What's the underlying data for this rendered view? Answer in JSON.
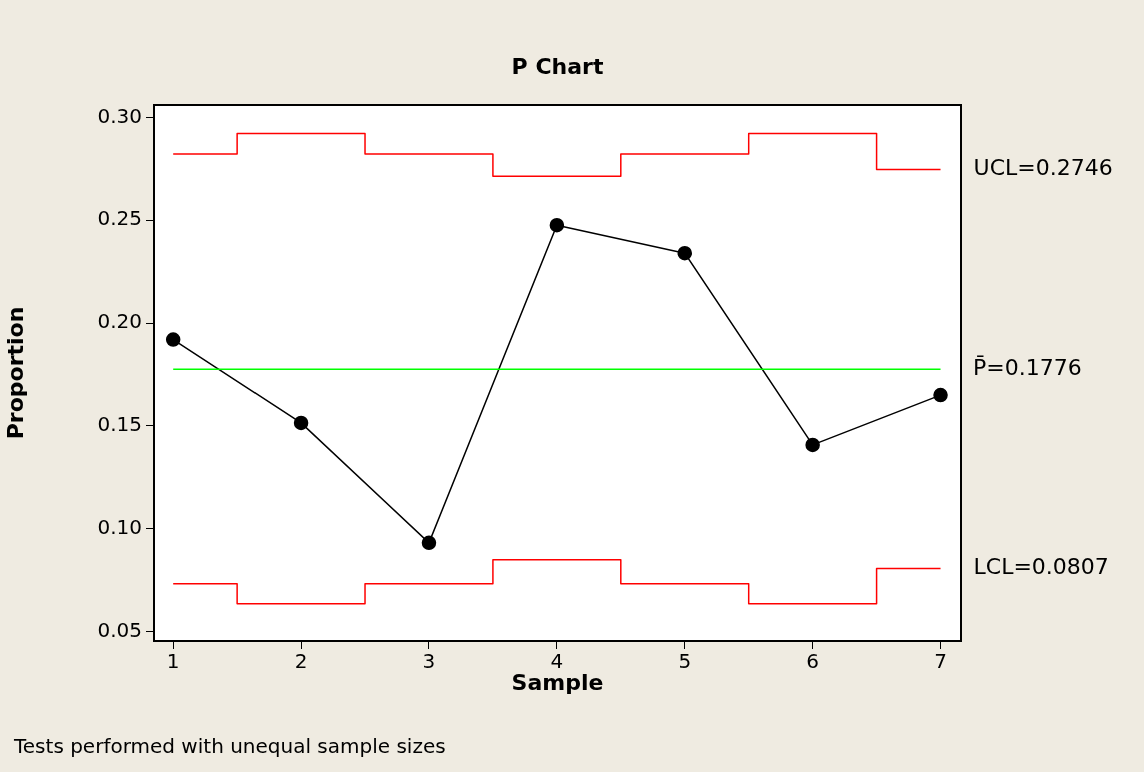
{
  "chart_data": {
    "type": "line",
    "title": "P Chart",
    "xlabel": "Sample",
    "ylabel": "Proportion",
    "x": [
      1,
      2,
      3,
      4,
      5,
      6,
      7
    ],
    "series": [
      {
        "marker": "circle",
        "color": "#000000",
        "values": [
          0.192,
          0.1515,
          0.0932,
          0.2476,
          0.234,
          0.1408,
          0.165
        ]
      },
      {
        "type": "step",
        "marker": "none",
        "color": "#ff0000",
        "values": [
          0.2822,
          0.2922,
          0.2822,
          0.2714,
          0.2822,
          0.2922,
          0.2746
        ]
      },
      {
        "type": "step",
        "marker": "none",
        "color": "#ff0000",
        "values": [
          0.0733,
          0.0636,
          0.0733,
          0.085,
          0.0733,
          0.0636,
          0.0807
        ]
      }
    ],
    "ref_lines": [
      {
        "axis": "y",
        "value": 0.1776,
        "label": "P̄=0.1776",
        "color": "#00ff00"
      }
    ],
    "annotations": [
      {
        "text": "UCL=0.2746",
        "x": 7,
        "y": 0.2746
      },
      {
        "text": "LCL=0.0807",
        "x": 7,
        "y": 0.0807
      },
      "Tests performed with unequal sample sizes"
    ],
    "xlim": [
      0.85,
      7.16
    ],
    "ylim": [
      0.0455,
      0.306
    ],
    "xticks": [
      1,
      2,
      3,
      4,
      5,
      6,
      7
    ],
    "yticks": [
      0.05,
      {
        "value": 0.1,
        "label": "0.10"
      },
      0.15,
      {
        "value": 0.2,
        "label": "0.20"
      },
      0.25,
      {
        "value": 0.3,
        "label": "0.30"
      }
    ],
    "grid": false,
    "legend": false,
    "line_style": "solid"
  }
}
